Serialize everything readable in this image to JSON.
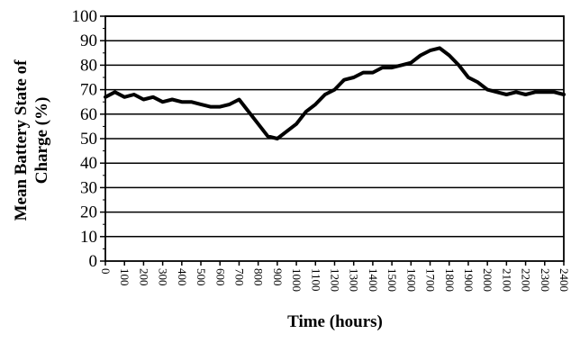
{
  "chart_data": {
    "type": "line",
    "xlabel": "Time (hours)",
    "ylabel": "Mean Battery State of Charge (%)",
    "ylabel_lines": [
      "Mean Battery State of",
      "Charge (%)"
    ],
    "xlim": [
      0,
      2400
    ],
    "ylim": [
      0,
      100
    ],
    "x_ticks": [
      "0",
      "100",
      "200",
      "300",
      "400",
      "500",
      "600",
      "700",
      "800",
      "900",
      "1000",
      "1100",
      "1200",
      "1300",
      "1400",
      "1500",
      "1600",
      "1700",
      "1800",
      "1900",
      "2000",
      "2100",
      "2200",
      "2300",
      "2400"
    ],
    "y_ticks": [
      "0",
      "10",
      "20",
      "30",
      "40",
      "50",
      "60",
      "70",
      "80",
      "90",
      "100"
    ],
    "grid": "horizontal",
    "series": [
      {
        "color": "#000000",
        "x": [
          0,
          50,
          100,
          150,
          200,
          250,
          300,
          350,
          400,
          450,
          500,
          550,
          600,
          650,
          700,
          750,
          800,
          850,
          900,
          950,
          1000,
          1050,
          1100,
          1150,
          1200,
          1250,
          1300,
          1350,
          1400,
          1450,
          1500,
          1550,
          1600,
          1650,
          1700,
          1750,
          1800,
          1850,
          1900,
          1950,
          2000,
          2050,
          2100,
          2150,
          2200,
          2250,
          2300,
          2350,
          2400
        ],
        "values": [
          67,
          69,
          67,
          68,
          66,
          67,
          65,
          66,
          65,
          65,
          64,
          63,
          63,
          64,
          66,
          61,
          56,
          51,
          50,
          53,
          56,
          61,
          64,
          68,
          70,
          74,
          75,
          77,
          77,
          79,
          79,
          80,
          81,
          84,
          86,
          87,
          84,
          80,
          75,
          73,
          70,
          69,
          68,
          69,
          68,
          69,
          69,
          69,
          68
        ]
      }
    ]
  }
}
